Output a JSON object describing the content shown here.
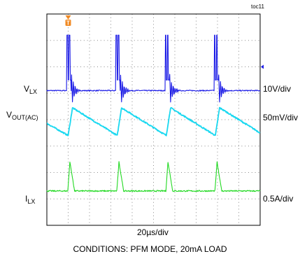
{
  "figure_label": "toc11",
  "caption": "CONDITIONS: PFM MODE, 20mA LOAD",
  "chart_data": {
    "type": "line",
    "x_scale_label": "20µs/div",
    "x_divisions": 10,
    "y_divisions": 8,
    "time_per_division_us": 20,
    "trigger_marker": "T",
    "pulse_times_div": [
      1.0,
      3.3,
      5.6,
      7.9
    ],
    "series": [
      {
        "name_main": "V",
        "name_sub": "LX",
        "scale_label": "10V/div",
        "color": "#1a1ae6",
        "baseline_div": 5.1,
        "waveform": "switching-burst"
      },
      {
        "name_main": "V",
        "name_sub": "OUT(AC)",
        "scale_label": "50mV/div",
        "color": "#19d8f0",
        "baseline_div": 3.9,
        "waveform": "sawtooth"
      },
      {
        "name_main": "I",
        "name_sub": "LX",
        "scale_label": "0.5A/div",
        "color": "#22d922",
        "baseline_div": 1.3,
        "waveform": "current-pulse"
      }
    ]
  }
}
